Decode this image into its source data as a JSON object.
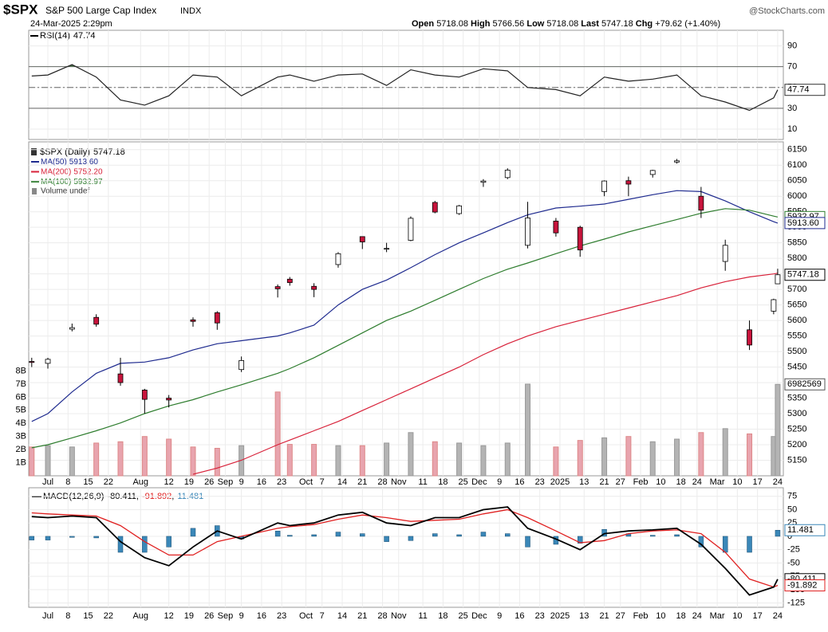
{
  "header": {
    "symbol": "$SPX",
    "name": "S&P 500 Large Cap Index",
    "exchange": "INDX",
    "date": "24-Mar-2025 2:29pm",
    "open_label": "Open",
    "high_label": "High",
    "low_label": "Low",
    "last_label": "Last",
    "chg_label": "Chg",
    "chg": "+79.62 (+1.40%)",
    "brand": "@StockCharts.com"
  },
  "chart_data": {
    "type": "candlestick",
    "xlim": [
      -4.75,
      182.4
    ],
    "x": [
      -4,
      0,
      6,
      12,
      18,
      24,
      30,
      36,
      42,
      48,
      57,
      60,
      66,
      72,
      78,
      84,
      90,
      96,
      102,
      108,
      114,
      119,
      126,
      132,
      138,
      144,
      150,
      156,
      162,
      168,
      174,
      180,
      181
    ],
    "xticks": [
      {
        "value": 0,
        "label": "Jul"
      },
      {
        "value": 5,
        "label": "8"
      },
      {
        "value": 10,
        "label": "15"
      },
      {
        "value": 15,
        "label": "22"
      },
      {
        "value": 23,
        "label": "Aug"
      },
      {
        "value": 30,
        "label": "12"
      },
      {
        "value": 35,
        "label": "19"
      },
      {
        "value": 40,
        "label": "26"
      },
      {
        "value": 44,
        "label": "Sep"
      },
      {
        "value": 48,
        "label": "9"
      },
      {
        "value": 53,
        "label": "16"
      },
      {
        "value": 58,
        "label": "23"
      },
      {
        "value": 64,
        "label": "Oct"
      },
      {
        "value": 68,
        "label": "7"
      },
      {
        "value": 73,
        "label": "14"
      },
      {
        "value": 78,
        "label": "21"
      },
      {
        "value": 83,
        "label": "28"
      },
      {
        "value": 87,
        "label": "Nov"
      },
      {
        "value": 93,
        "label": "11"
      },
      {
        "value": 98,
        "label": "18"
      },
      {
        "value": 103,
        "label": "25"
      },
      {
        "value": 107,
        "label": "Dec"
      },
      {
        "value": 112,
        "label": "9"
      },
      {
        "value": 117,
        "label": "16"
      },
      {
        "value": 122,
        "label": "23"
      },
      {
        "value": 127,
        "label": "2025"
      },
      {
        "value": 133,
        "label": "13"
      },
      {
        "value": 138,
        "label": "21"
      },
      {
        "value": 142,
        "label": "27"
      },
      {
        "value": 147,
        "label": "Feb"
      },
      {
        "value": 152,
        "label": "10"
      },
      {
        "value": 157,
        "label": "18"
      },
      {
        "value": 161,
        "label": "24"
      },
      {
        "value": 166,
        "label": "Mar"
      },
      {
        "value": 171,
        "label": "10"
      },
      {
        "value": 176,
        "label": "17"
      },
      {
        "value": 181,
        "label": "24"
      }
    ],
    "price": {
      "name": "$SPX (Daily)",
      "ylim": [
        5100,
        6175
      ],
      "yticks": [
        5150,
        5200,
        5250,
        5300,
        5350,
        5400,
        5450,
        5500,
        5550,
        5600,
        5650,
        5700,
        5750,
        5800,
        5850,
        5900,
        5950,
        6000,
        6050,
        6100,
        6150
      ],
      "up_color": "#ffffff",
      "down_color": "#c8143c",
      "open": [
        5468,
        5462,
        5572,
        5610,
        5428,
        5376,
        5350,
        5602,
        5625,
        5442,
        5709,
        5733,
        5710,
        5780,
        5870,
        5830,
        5858,
        5980,
        5944,
        6045,
        6060,
        5842,
        5920,
        5900,
        6015,
        6050,
        6070,
        6110,
        6000,
        5790,
        5570,
        5630,
        5718.08
      ],
      "high": [
        5480,
        5480,
        5590,
        5620,
        5480,
        5380,
        5360,
        5610,
        5630,
        5484,
        5716,
        5740,
        5720,
        5820,
        5870,
        5850,
        5935,
        5985,
        5972,
        6055,
        6090,
        5982,
        5930,
        5905,
        6051,
        6063,
        6085,
        6120,
        6030,
        5860,
        5600,
        5670,
        5766.56
      ],
      "low": [
        5450,
        5445,
        5565,
        5580,
        5390,
        5300,
        5320,
        5580,
        5570,
        5434,
        5674,
        5712,
        5675,
        5770,
        5830,
        5820,
        5855,
        5945,
        5940,
        6030,
        6055,
        5832,
        5870,
        5805,
        6000,
        6000,
        6060,
        6105,
        5930,
        5760,
        5505,
        5620,
        5718.08
      ],
      "close": [
        5465,
        5475,
        5577,
        5588,
        5400,
        5346,
        5344,
        5597,
        5592,
        5471,
        5702,
        5722,
        5700,
        5815,
        5853,
        5832,
        5929,
        5949,
        5969,
        6049,
        6084,
        5930,
        5882,
        5827,
        6049,
        6039,
        6083,
        6114,
        5955,
        5842,
        5521,
        5667,
        5747.18
      ]
    },
    "mas": [
      {
        "name": "MA(50)",
        "color": "#1f2b8f",
        "last_label": "5913.60",
        "values": [
          5275,
          5300,
          5370,
          5430,
          5462,
          5466,
          5480,
          5505,
          5525,
          5535,
          5550,
          5560,
          5585,
          5650,
          5700,
          5730,
          5770,
          5812,
          5850,
          5882,
          5915,
          5940,
          5962,
          5968,
          5975,
          5990,
          6005,
          6018,
          6015,
          5985,
          5950,
          5918,
          5913.6
        ]
      },
      {
        "name": "MA(200)",
        "color": "#d8223a",
        "last_label": "5752.20",
        "values": [
          null,
          null,
          null,
          null,
          null,
          null,
          null,
          5105,
          5125,
          5150,
          5200,
          5215,
          5245,
          5275,
          5310,
          5345,
          5380,
          5415,
          5450,
          5490,
          5525,
          5550,
          5580,
          5600,
          5620,
          5640,
          5660,
          5680,
          5705,
          5725,
          5740,
          5750,
          5752.2
        ]
      },
      {
        "name": "MA(100)",
        "color": "#2e7d2e",
        "values": [
          5190,
          5200,
          5222,
          5245,
          5270,
          5300,
          5325,
          5345,
          5370,
          5393,
          5430,
          5445,
          5480,
          5520,
          5560,
          5600,
          5630,
          5665,
          5700,
          5735,
          5765,
          5785,
          5815,
          5840,
          5862,
          5885,
          5905,
          5925,
          5945,
          5960,
          5955,
          5936,
          5932.97
        ]
      }
    ],
    "volume": {
      "name": "Volume undef",
      "ylim": [
        0,
        25500000
      ],
      "yticks": [
        {
          "value": 1000000,
          "label": "1B"
        },
        {
          "value": 2000000,
          "label": "2B"
        },
        {
          "value": 3000000,
          "label": "3B"
        },
        {
          "value": 4000000,
          "label": "4B"
        },
        {
          "value": 5000000,
          "label": "5B"
        },
        {
          "value": 6000000,
          "label": "6B"
        },
        {
          "value": 7000000,
          "label": "7B"
        },
        {
          "value": 8000000,
          "label": "8B"
        }
      ],
      "up_color": "#b4b4b4",
      "down_color": "#e8a4ae",
      "values": [
        2200000,
        2300000,
        2200000,
        2500000,
        2600000,
        3000000,
        2800000,
        2200000,
        2100000,
        2300000,
        6400000,
        2400000,
        2400000,
        2300000,
        2300000,
        2500000,
        3300000,
        2600000,
        2500000,
        2300000,
        2500000,
        7000000,
        2200000,
        2700000,
        2900000,
        3000000,
        2600000,
        2800000,
        3300000,
        3600000,
        3200000,
        3000000,
        6982569
      ]
    },
    "rsi": {
      "name": "RSI(14)",
      "ylim": [
        0,
        105
      ],
      "yticks": [
        10,
        30,
        50,
        70,
        90
      ],
      "upper": 70,
      "middle": 50,
      "lower": 30,
      "fill_color": "#4d7a4d",
      "values": [
        61,
        62,
        72,
        60,
        38,
        33,
        42,
        62,
        60,
        42,
        60,
        62,
        56,
        62,
        63,
        52,
        67,
        62,
        60,
        68,
        66,
        50,
        48,
        42,
        60,
        56,
        58,
        62,
        42,
        36,
        28,
        40,
        47.74
      ]
    },
    "macd": {
      "name": "MACD(12,26,9)",
      "ylim": [
        -133,
        91
      ],
      "yticks": [
        75,
        50,
        25,
        0,
        -25,
        -50,
        -75,
        -100,
        -125
      ],
      "series": [
        {
          "color": "#000000",
          "values": [
            37,
            35,
            38,
            35,
            -10,
            -40,
            -55,
            -20,
            10,
            -5,
            25,
            20,
            25,
            40,
            45,
            25,
            20,
            35,
            35,
            50,
            55,
            15,
            -5,
            -25,
            5,
            10,
            12,
            15,
            -15,
            -60,
            -110,
            -95,
            -80.411
          ]
        },
        {
          "color": "#e02020",
          "values": [
            44,
            42,
            40,
            38,
            20,
            -10,
            -35,
            -35,
            -10,
            0,
            15,
            18,
            22,
            32,
            40,
            35,
            28,
            30,
            32,
            42,
            50,
            35,
            10,
            -12,
            -8,
            5,
            10,
            12,
            5,
            -30,
            -80,
            -95,
            -91.892
          ]
        },
        {
          "color": "#3a87b8",
          "values": [
            -7,
            -7,
            -2,
            -3,
            -30,
            -30,
            -20,
            15,
            20,
            -5,
            10,
            2,
            3,
            8,
            5,
            -10,
            -8,
            5,
            3,
            8,
            5,
            -20,
            -15,
            -13,
            13,
            5,
            2,
            3,
            -20,
            -30,
            -30,
            0,
            11.481
          ]
        }
      ]
    }
  }
}
